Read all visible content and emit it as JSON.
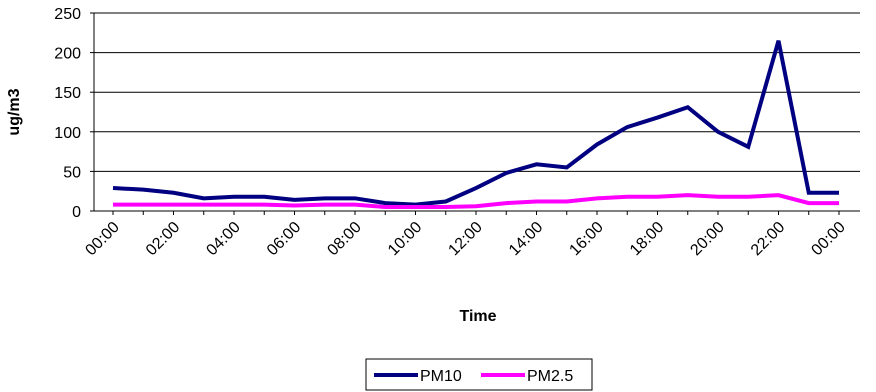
{
  "chart_data": {
    "type": "line",
    "title": "",
    "xlabel": "Time",
    "ylabel": "ug/m3",
    "ylim": [
      0,
      250
    ],
    "yticks": [
      0,
      50,
      100,
      150,
      200,
      250
    ],
    "x": [
      "00:00",
      "01:00",
      "02:00",
      "03:00",
      "04:00",
      "05:00",
      "06:00",
      "07:00",
      "08:00",
      "09:00",
      "10:00",
      "11:00",
      "12:00",
      "13:00",
      "14:00",
      "15:00",
      "16:00",
      "17:00",
      "18:00",
      "19:00",
      "20:00",
      "21:00",
      "22:00",
      "23:00",
      "00:00"
    ],
    "x_tick_labels": [
      "00:00",
      "02:00",
      "04:00",
      "06:00",
      "08:00",
      "10:00",
      "12:00",
      "14:00",
      "16:00",
      "18:00",
      "20:00",
      "22:00",
      "00:00"
    ],
    "grid": "horizontal",
    "legend_position": "bottom",
    "series": [
      {
        "name": "PM10",
        "color": "#000080",
        "values": [
          29,
          27,
          23,
          16,
          18,
          18,
          14,
          16,
          16,
          10,
          8,
          12,
          29,
          48,
          59,
          55,
          84,
          106,
          118,
          131,
          100,
          81,
          215,
          23,
          23
        ]
      },
      {
        "name": "PM2.5",
        "color": "#FF00FF",
        "values": [
          8,
          8,
          8,
          8,
          8,
          8,
          7,
          8,
          8,
          5,
          5,
          5,
          6,
          10,
          12,
          12,
          16,
          18,
          18,
          20,
          18,
          18,
          20,
          10,
          10
        ]
      }
    ]
  }
}
